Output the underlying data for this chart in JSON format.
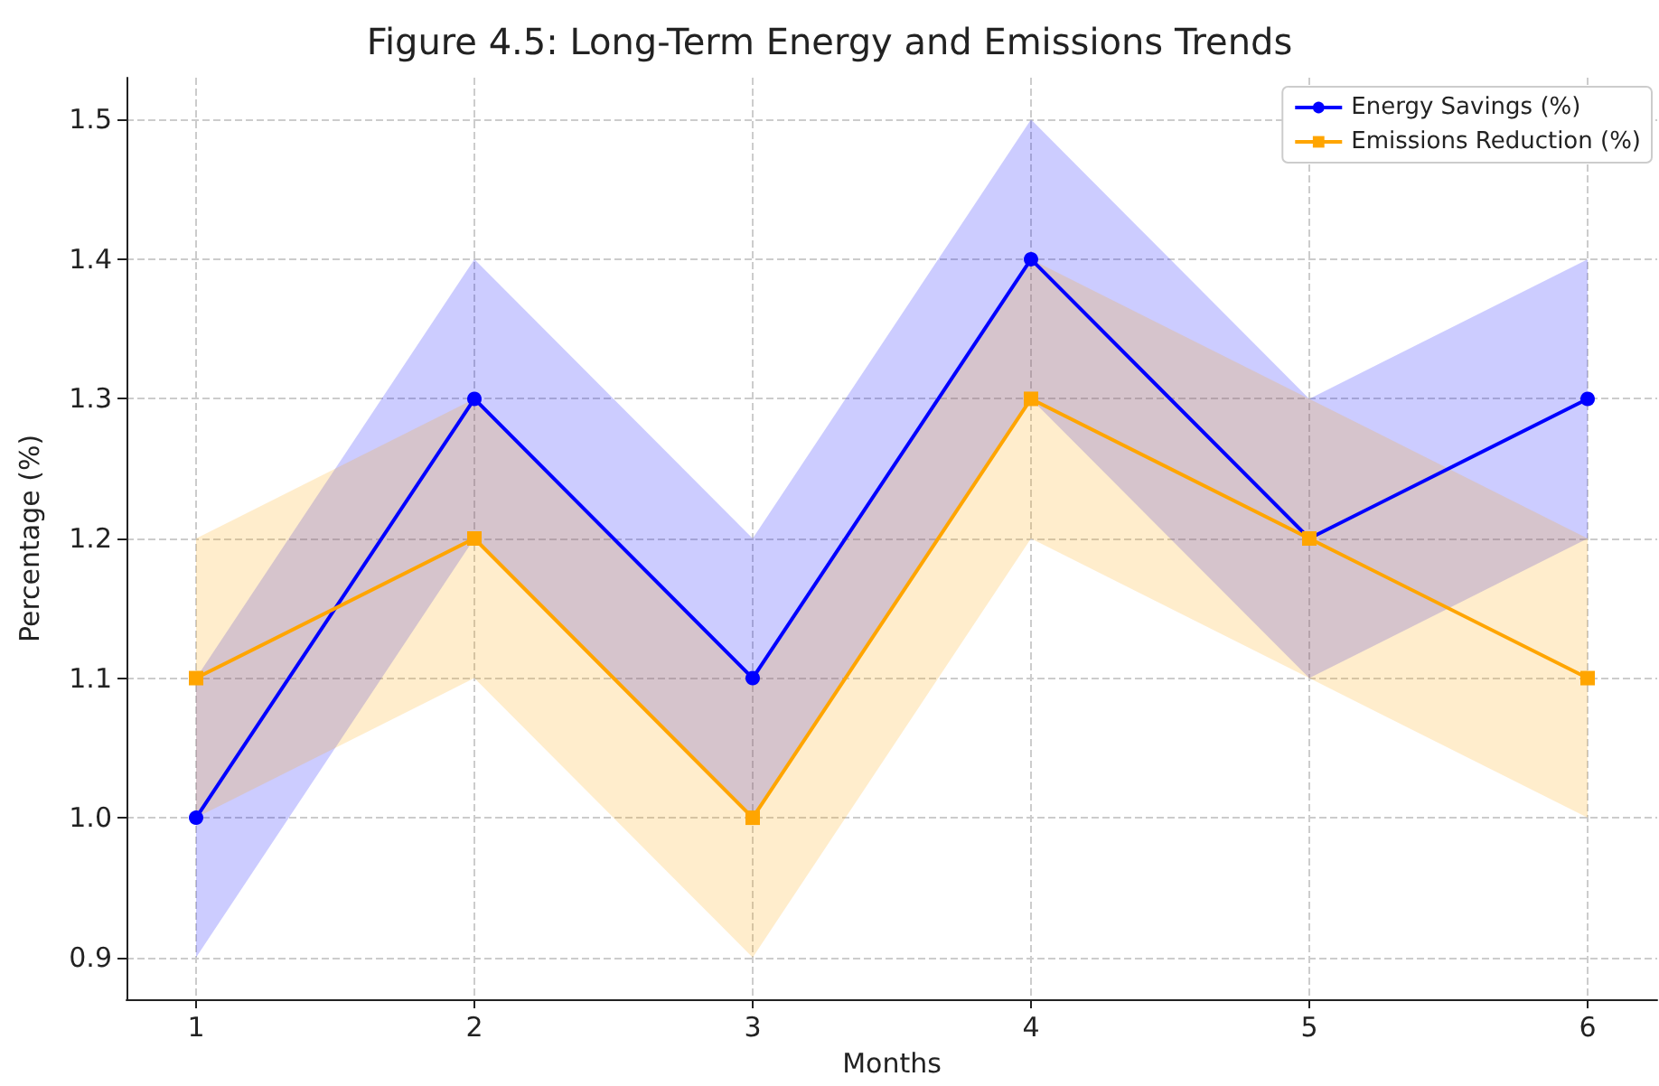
{
  "chart_data": {
    "type": "line",
    "title": "Figure 4.5: Long-Term Energy and Emissions Trends",
    "xlabel": "Months",
    "ylabel": "Percentage (%)",
    "x": [
      1,
      2,
      3,
      4,
      5,
      6
    ],
    "series": [
      {
        "name": "Energy Savings (%)",
        "color": "#0000ff",
        "marker": "circle",
        "values": [
          1.0,
          1.3,
          1.1,
          1.4,
          1.2,
          1.3
        ],
        "lower": [
          0.9,
          1.2,
          1.0,
          1.3,
          1.1,
          1.2
        ],
        "upper": [
          1.1,
          1.4,
          1.2,
          1.5,
          1.3,
          1.4
        ]
      },
      {
        "name": "Emissions Reduction (%)",
        "color": "#ffa500",
        "marker": "square",
        "values": [
          1.1,
          1.2,
          1.0,
          1.3,
          1.2,
          1.1
        ],
        "lower": [
          1.0,
          1.1,
          0.9,
          1.2,
          1.1,
          1.0
        ],
        "upper": [
          1.2,
          1.3,
          1.1,
          1.4,
          1.3,
          1.2
        ]
      }
    ],
    "xlim": [
      0.75,
      6.25
    ],
    "xticks": [
      1,
      2,
      3,
      4,
      5,
      6
    ],
    "ylim": [
      0.87,
      1.53
    ],
    "yticks": [
      0.9,
      {
        "value": 1.0,
        "label": "1.0"
      },
      1.1,
      1.2,
      1.3,
      1.4,
      1.5
    ],
    "grid": true,
    "legend": "top right",
    "line_style": "solid"
  }
}
